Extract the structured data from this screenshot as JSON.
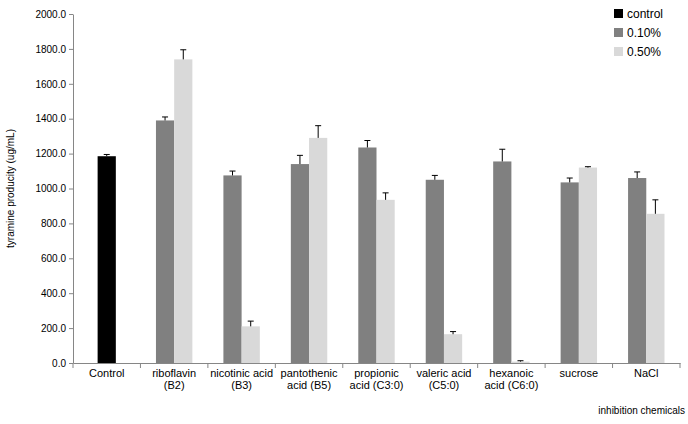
{
  "chart_data": {
    "type": "bar",
    "x_label": "inhibition chemicals",
    "y_label": "tyramine producity (ug/mL)",
    "categories": [
      "Control",
      "riboflavin (B2)",
      "nicotinic acid (B3)",
      "pantothenic acid (B5)",
      "propionic acid (C3:0)",
      "valeric acid (C5:0)",
      "hexanoic acid (C6:0)",
      "sucrose",
      "NaCl"
    ],
    "series": [
      {
        "name": "control",
        "color": "#000000",
        "values": [
          1185,
          null,
          null,
          null,
          null,
          null,
          null,
          null,
          null
        ],
        "errors": [
          10,
          null,
          null,
          null,
          null,
          null,
          null,
          null,
          null
        ]
      },
      {
        "name": "0.10%",
        "color": "#808080",
        "values": [
          null,
          1390,
          1075,
          1140,
          1235,
          1050,
          1155,
          1035,
          1060
        ],
        "errors": [
          null,
          20,
          25,
          50,
          40,
          25,
          70,
          25,
          35
        ]
      },
      {
        "name": "0.50%",
        "color": "#d9d9d9",
        "values": [
          null,
          1740,
          210,
          1290,
          935,
          165,
          8,
          1120,
          855
        ],
        "errors": [
          null,
          55,
          30,
          70,
          40,
          15,
          5,
          5,
          80
        ]
      }
    ],
    "ylim": [
      0,
      2000
    ],
    "yticks": [
      {
        "value": 0,
        "label": "0.0"
      },
      {
        "value": 200,
        "label": "200.0"
      },
      {
        "value": 400,
        "label": "400.0"
      },
      {
        "value": 600,
        "label": "600.0"
      },
      {
        "value": 800,
        "label": "800.0"
      },
      {
        "value": 1000,
        "label": "1000.0"
      },
      {
        "value": 1200,
        "label": "1200.0"
      },
      {
        "value": 1400,
        "label": "1400.0"
      },
      {
        "value": 1600,
        "label": "1600.0"
      },
      {
        "value": 1800,
        "label": "1800.0"
      },
      {
        "value": 2000,
        "label": "2000.0"
      }
    ],
    "grid": false,
    "legend": "top-right"
  }
}
